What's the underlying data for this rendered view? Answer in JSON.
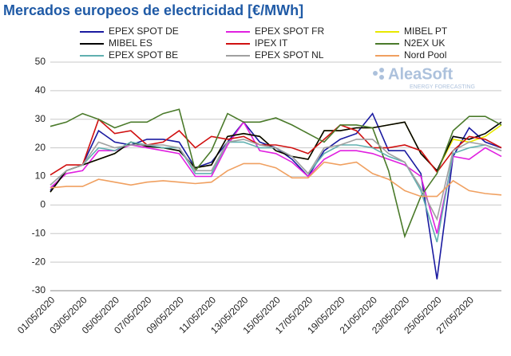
{
  "chart_data": {
    "type": "line",
    "title": "Mercados europeos de electricidad [€/MWh]",
    "watermark": {
      "text": "AleaSoft",
      "subtext": "ENERGY FORECASTING"
    },
    "categories": [
      "01/05/2020",
      null,
      "03/05/2020",
      null,
      "05/05/2020",
      null,
      "07/05/2020",
      null,
      "09/05/2020",
      null,
      "11/05/2020",
      null,
      "13/05/2020",
      null,
      "15/05/2020",
      null,
      "17/05/2020",
      null,
      "19/05/2020",
      null,
      "21/05/2020",
      null,
      "23/05/2020",
      null,
      "25/05/2020",
      null,
      "27/05/2020",
      null,
      null
    ],
    "ylim": [
      -30,
      50
    ],
    "yticks": [
      -30,
      -20,
      -10,
      0,
      10,
      20,
      30,
      40,
      50
    ],
    "grid": true,
    "series": [
      {
        "name": "EPEX SPOT DE",
        "color": "#1a1aa0",
        "values": [
          5,
          12,
          14,
          26,
          22,
          21,
          23,
          23,
          22,
          13,
          15,
          22,
          29,
          22,
          20,
          16,
          10,
          19,
          23,
          25,
          32,
          19,
          19,
          11,
          -26,
          17,
          27,
          22,
          20
        ]
      },
      {
        "name": "EPEX SPOT FR",
        "color": "#e020e0",
        "values": [
          6,
          11,
          12,
          19,
          19,
          21,
          20,
          19,
          18,
          10,
          10,
          21,
          29,
          19,
          18,
          15,
          10,
          16,
          19,
          19,
          18,
          16,
          14,
          10,
          -10,
          17,
          16,
          20,
          17
        ]
      },
      {
        "name": "MIBEL PT",
        "color": "#e8e800",
        "values": [
          4.5,
          12,
          14,
          16,
          18,
          22,
          20.5,
          20,
          19,
          13,
          14,
          24,
          25,
          24,
          19,
          17,
          16,
          26,
          26,
          27,
          27,
          28,
          29,
          18,
          12,
          23,
          22,
          24,
          28
        ]
      },
      {
        "name": "MIBEL ES",
        "color": "#000000",
        "values": [
          4.5,
          12,
          14,
          16,
          18,
          22,
          20.5,
          20,
          19,
          13,
          14,
          24,
          25,
          24,
          19,
          17,
          16,
          26,
          26,
          27,
          27,
          28,
          29,
          18,
          12,
          24,
          23,
          25,
          29
        ]
      },
      {
        "name": "IPEX IT",
        "color": "#d01010",
        "values": [
          10.5,
          14,
          14,
          30,
          25,
          26,
          21,
          22,
          26,
          20,
          24,
          23,
          24,
          21,
          21,
          20,
          18,
          23,
          28,
          26,
          20,
          20,
          21,
          19,
          11.5,
          19,
          24,
          23,
          20
        ]
      },
      {
        "name": "N2EX UK",
        "color": "#4a7a2a",
        "values": [
          27.5,
          29,
          32,
          30,
          27,
          29,
          29,
          32,
          33.5,
          12,
          19,
          32,
          29,
          29,
          30.5,
          28,
          25,
          22,
          28,
          28,
          27,
          12,
          -11,
          3,
          11,
          26,
          31,
          31,
          28
        ]
      },
      {
        "name": "EPEX SPOT BE",
        "color": "#60b0b0",
        "values": [
          7,
          12,
          14,
          20,
          19,
          22,
          21,
          20,
          20,
          11,
          11,
          22,
          22,
          20,
          20,
          17,
          11,
          18,
          21,
          21,
          20,
          17,
          15,
          5,
          -13,
          18,
          20,
          21,
          19
        ]
      },
      {
        "name": "EPEX SPOT NL",
        "color": "#a0a0a0",
        "values": [
          7,
          12,
          14,
          22,
          20,
          21,
          21,
          21,
          20,
          12,
          12,
          22,
          23,
          21,
          20,
          17,
          11,
          20,
          21,
          23,
          23,
          18,
          15,
          6,
          -5,
          19,
          22,
          21,
          19
        ]
      },
      {
        "name": "Nord Pool",
        "color": "#f0a060",
        "values": [
          6,
          6.5,
          6.5,
          9,
          8,
          7,
          8,
          8.5,
          8,
          7.5,
          8,
          12,
          14.5,
          14.5,
          13,
          9.5,
          9.5,
          15,
          14,
          15,
          11,
          9,
          5,
          3,
          3,
          8.5,
          5,
          4,
          3.5
        ]
      }
    ]
  }
}
